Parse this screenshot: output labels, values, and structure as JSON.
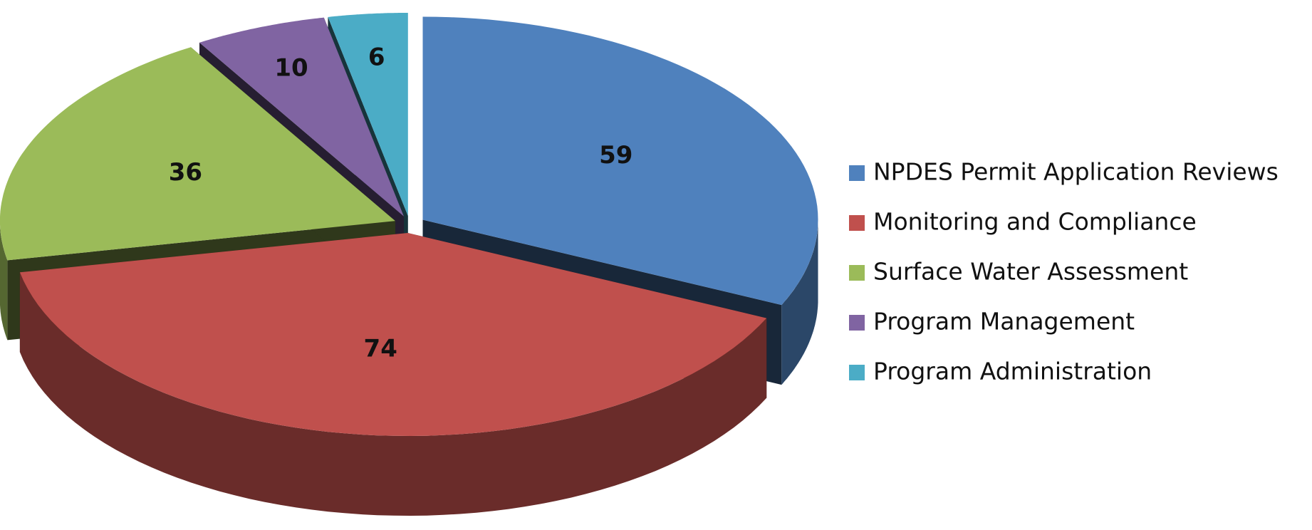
{
  "chart_data": {
    "type": "pie",
    "categories": [
      "NPDES Permit Application Reviews",
      "Monitoring and Compliance",
      "Surface Water Assessment",
      "Program Management",
      "Program Administration"
    ],
    "values": [
      59,
      74,
      36,
      10,
      6
    ],
    "colors": [
      "#4f81bd",
      "#c0504d",
      "#9bbb59",
      "#8064a2",
      "#4bacc6"
    ],
    "legend": "right"
  }
}
